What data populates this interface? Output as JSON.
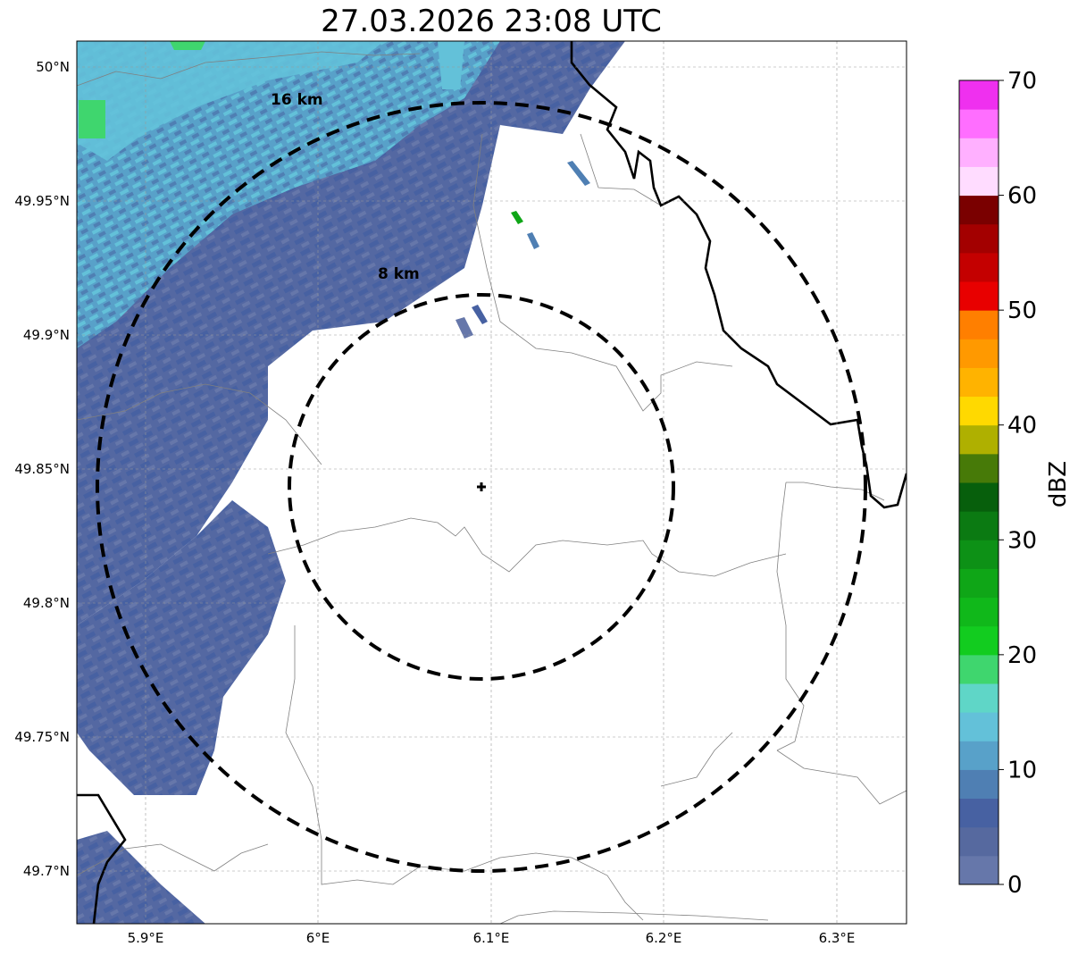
{
  "title": "27.03.2026 23:08 UTC",
  "map": {
    "lon_range": [
      5.86,
      6.34
    ],
    "lat_range": [
      49.68,
      50.01
    ],
    "radar_site": {
      "lon": 6.095,
      "lat": 49.842
    },
    "x_ticks": [
      {
        "value": 5.9,
        "label": "5.9°E"
      },
      {
        "value": 6.0,
        "label": "6°E"
      },
      {
        "value": 6.1,
        "label": "6.1°E"
      },
      {
        "value": 6.2,
        "label": "6.2°E"
      },
      {
        "value": 6.3,
        "label": "6.3°E"
      }
    ],
    "y_ticks": [
      {
        "value": 50.0,
        "label": "50°N"
      },
      {
        "value": 49.95,
        "label": "49.95°N"
      },
      {
        "value": 49.9,
        "label": "49.9°N"
      },
      {
        "value": 49.85,
        "label": "49.85°N"
      },
      {
        "value": 49.8,
        "label": "49.8°N"
      },
      {
        "value": 49.75,
        "label": "49.75°N"
      },
      {
        "value": 49.7,
        "label": "49.7°N"
      }
    ],
    "range_rings": [
      {
        "radius_km": 8,
        "label": "8 km"
      },
      {
        "radius_km": 16,
        "label": "16 km"
      }
    ]
  },
  "colorbar": {
    "label": "dBZ",
    "min": 0,
    "max": 70,
    "step": 2.5,
    "tick_values": [
      0,
      10,
      20,
      30,
      40,
      50,
      60,
      70
    ],
    "tick_labels": [
      "0",
      "10",
      "20",
      "30",
      "40",
      "50",
      "60",
      "70"
    ],
    "colors": [
      "#6677aa",
      "#56699f",
      "#4761a2",
      "#4f7fb3",
      "#58a1c9",
      "#63c1d9",
      "#5fd6c7",
      "#3fd66e",
      "#12cc1f",
      "#10b81a",
      "#0fa617",
      "#0d9116",
      "#0b7a12",
      "#075f0c",
      "#477a08",
      "#afb000",
      "#ffd900",
      "#ffb300",
      "#ff9900",
      "#ff7f00",
      "#e80000",
      "#c40000",
      "#a30000",
      "#7a0000",
      "#ffdcff",
      "#ffb0ff",
      "#ff6eff",
      "#ef30ef"
    ]
  }
}
